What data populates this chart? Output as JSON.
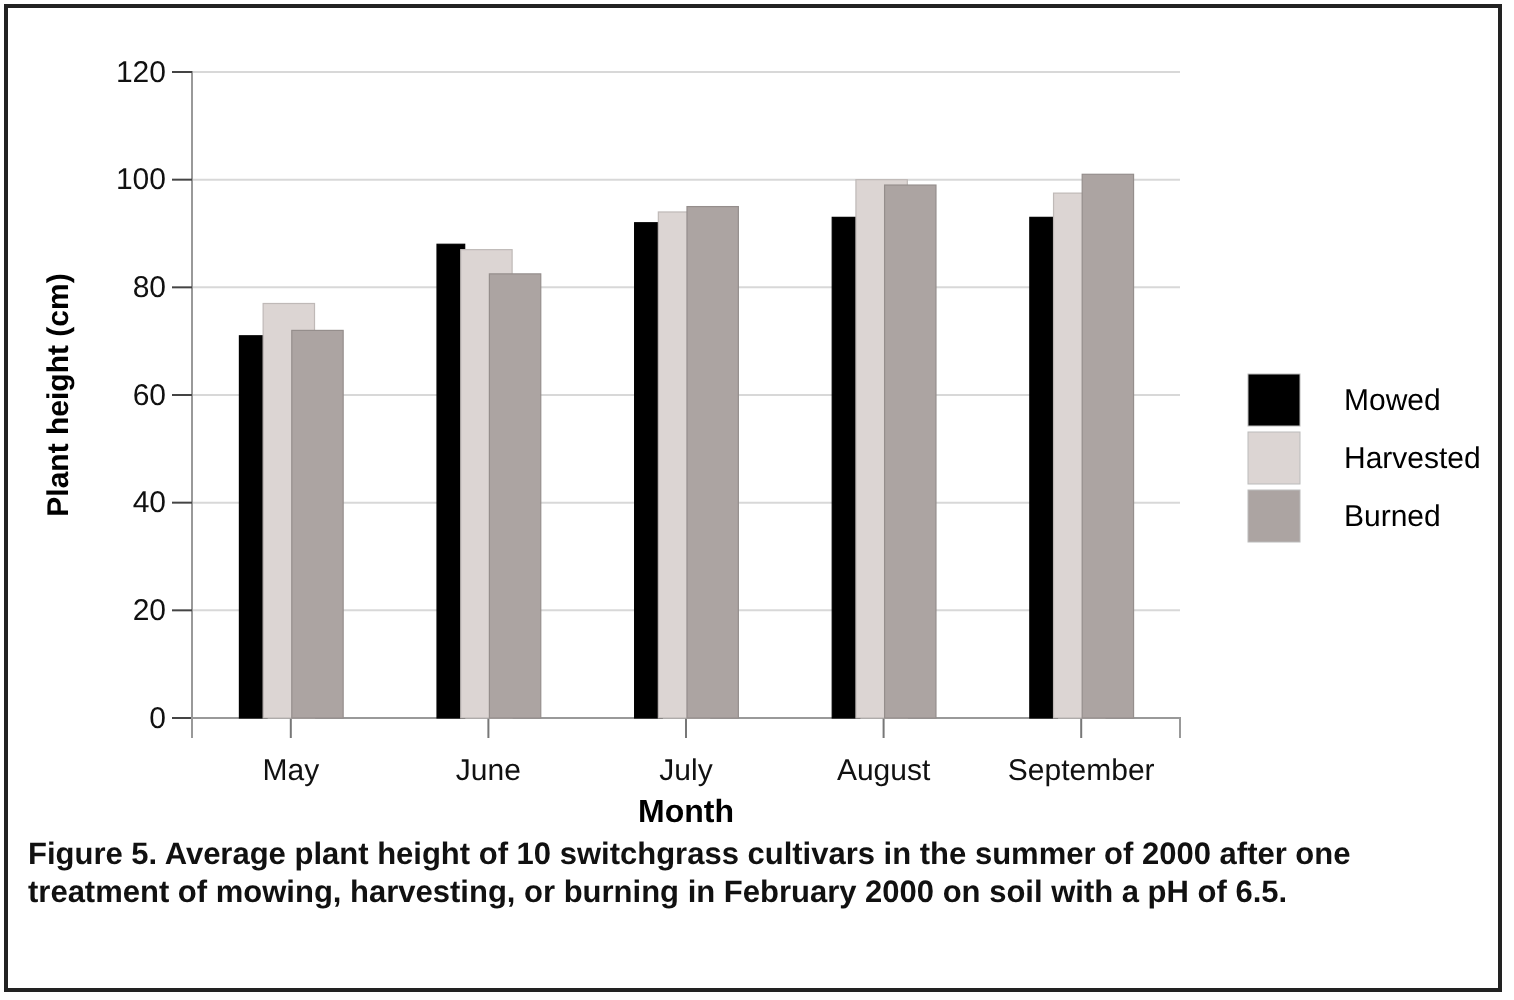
{
  "chart_data": {
    "type": "bar",
    "xlabel": "Month",
    "ylabel": "Plant height (cm)",
    "categories": [
      "May",
      "June",
      "July",
      "August",
      "September"
    ],
    "series": [
      {
        "name": "Mowed",
        "color": "#000000",
        "values": [
          71,
          88,
          92,
          93,
          93
        ]
      },
      {
        "name": "Harvested",
        "color": "#dcd5d3",
        "values": [
          77,
          87,
          94,
          100,
          97.5
        ]
      },
      {
        "name": "Burned",
        "color": "#aca4a2",
        "values": [
          72,
          82.5,
          95,
          99,
          101
        ]
      }
    ],
    "ylim": [
      0,
      120
    ],
    "yticks": [
      0,
      20,
      40,
      60,
      80,
      100,
      120
    ],
    "grid": "y",
    "legend": "right",
    "annotations": [
      "Figure 5. Average plant height of 10 switchgrass cultivars in the summer of 2000 after one treatment of mowing, harvesting, or burning in February 2000 on soil with a pH of 6.5."
    ]
  }
}
